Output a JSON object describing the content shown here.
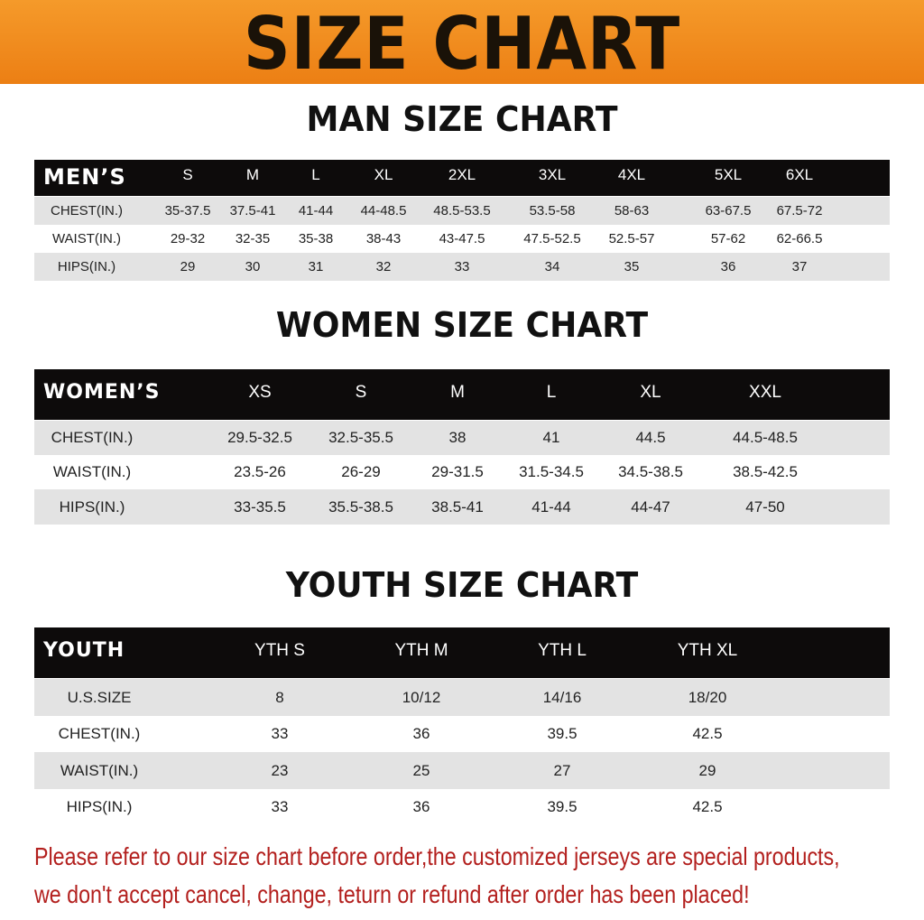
{
  "banner_title": "SIZE CHART",
  "colors": {
    "banner": "#ec7f14",
    "header_row": "#0d0b0b",
    "stripe": "#e3e3e3",
    "note_text": "#b3201e"
  },
  "men": {
    "title": "MAN SIZE CHART",
    "header_label": "MEN’S",
    "sizes": [
      "S",
      "M",
      "L",
      "XL",
      "2XL",
      "3XL",
      "4XL",
      "5XL",
      "6XL"
    ],
    "rows": [
      {
        "label": "CHEST(IN.)",
        "values": [
          "35-37.5",
          "37.5-41",
          "41-44",
          "44-48.5",
          "48.5-53.5",
          "53.5-58",
          "58-63",
          "63-67.5",
          "67.5-72"
        ]
      },
      {
        "label": "WAIST(IN.)",
        "values": [
          "29-32",
          "32-35",
          "35-38",
          "38-43",
          "43-47.5",
          "47.5-52.5",
          "52.5-57",
          "57-62",
          "62-66.5"
        ]
      },
      {
        "label": "HIPS(IN.)",
        "values": [
          "29",
          "30",
          "31",
          "32",
          "33",
          "34",
          "35",
          "36",
          "37"
        ]
      }
    ]
  },
  "women": {
    "title": "WOMEN SIZE CHART",
    "header_label": "WOMEN’S",
    "sizes": [
      "XS",
      "S",
      "M",
      "L",
      "XL",
      "XXL"
    ],
    "rows": [
      {
        "label": "CHEST(IN.)",
        "values": [
          "29.5-32.5",
          "32.5-35.5",
          "38",
          "41",
          "44.5",
          "44.5-48.5"
        ]
      },
      {
        "label": "WAIST(IN.)",
        "values": [
          "23.5-26",
          "26-29",
          "29-31.5",
          "31.5-34.5",
          "34.5-38.5",
          "38.5-42.5"
        ]
      },
      {
        "label": "HIPS(IN.)",
        "values": [
          "33-35.5",
          "35.5-38.5",
          "38.5-41",
          "41-44",
          "44-47",
          "47-50"
        ]
      }
    ]
  },
  "youth": {
    "title": "YOUTH SIZE CHART",
    "header_label": "YOUTH",
    "sizes": [
      "YTH S",
      "YTH M",
      "YTH L",
      "YTH XL"
    ],
    "rows": [
      {
        "label": "U.S.SIZE",
        "values": [
          "8",
          "10/12",
          "14/16",
          "18/20"
        ]
      },
      {
        "label": "CHEST(IN.)",
        "values": [
          "33",
          "36",
          "39.5",
          "42.5"
        ]
      },
      {
        "label": "WAIST(IN.)",
        "values": [
          "23",
          "25",
          "27",
          "29"
        ]
      },
      {
        "label": "HIPS(IN.)",
        "values": [
          "33",
          "36",
          "39.5",
          "42.5"
        ]
      }
    ]
  },
  "notes": [
    "Please refer to our size chart before order,the customized jerseys are special products,",
    "we don't accept cancel, change, teturn or refund after order has been placed!"
  ]
}
